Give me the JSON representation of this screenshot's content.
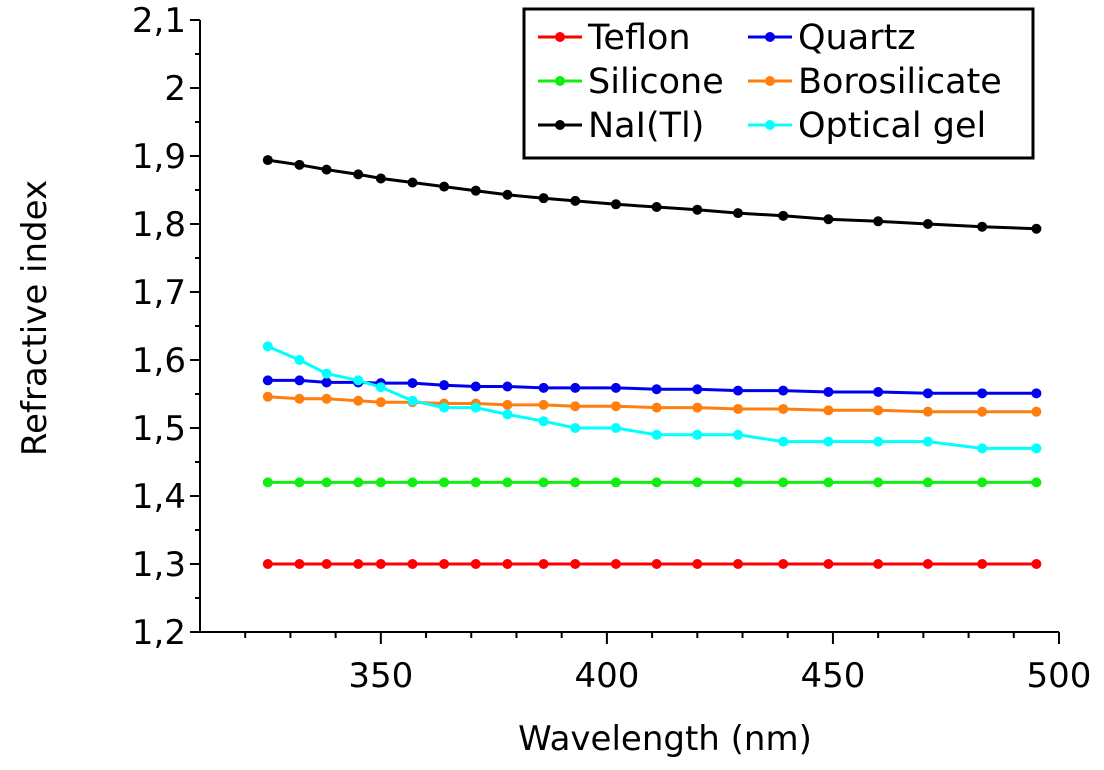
{
  "chart_data": {
    "type": "line",
    "title": "",
    "xlabel": "Wavelength (nm)",
    "ylabel": "Refractive index",
    "xlim": [
      310,
      500
    ],
    "ylim": [
      1.2,
      2.1
    ],
    "x_ticks": [
      350,
      400,
      450,
      500
    ],
    "x_tick_labels": [
      "350",
      "400",
      "450",
      "500"
    ],
    "y_ticks": [
      1.2,
      1.3,
      1.4,
      1.5,
      1.6,
      1.7,
      1.8,
      1.9,
      2.0,
      2.1
    ],
    "y_tick_labels": [
      "1,2",
      "1,3",
      "1,4",
      "1,5",
      "1,6",
      "1,7",
      "1,8",
      "1,9",
      "2",
      "2,1"
    ],
    "grid": false,
    "legend_position": "top-right",
    "x": [
      325,
      332,
      338,
      345,
      350,
      357,
      364,
      371,
      378,
      386,
      393,
      402,
      411,
      420,
      429,
      439,
      449,
      460,
      471,
      483,
      495
    ],
    "series": [
      {
        "name": "Teflon",
        "color": "#ff0000",
        "values": [
          1.3,
          1.3,
          1.3,
          1.3,
          1.3,
          1.3,
          1.3,
          1.3,
          1.3,
          1.3,
          1.3,
          1.3,
          1.3,
          1.3,
          1.3,
          1.3,
          1.3,
          1.3,
          1.3,
          1.3,
          1.3
        ]
      },
      {
        "name": "Quartz",
        "color": "#0000ee",
        "values": [
          1.57,
          1.57,
          1.567,
          1.567,
          1.566,
          1.566,
          1.563,
          1.561,
          1.561,
          1.559,
          1.559,
          1.559,
          1.557,
          1.557,
          1.555,
          1.555,
          1.553,
          1.553,
          1.551,
          1.551,
          1.551
        ]
      },
      {
        "name": "Silicone",
        "color": "#11ee11",
        "values": [
          1.42,
          1.42,
          1.42,
          1.42,
          1.42,
          1.42,
          1.42,
          1.42,
          1.42,
          1.42,
          1.42,
          1.42,
          1.42,
          1.42,
          1.42,
          1.42,
          1.42,
          1.42,
          1.42,
          1.42,
          1.42
        ]
      },
      {
        "name": "Borosilicate",
        "color": "#ff7f0e",
        "values": [
          1.546,
          1.543,
          1.543,
          1.54,
          1.538,
          1.538,
          1.536,
          1.536,
          1.534,
          1.534,
          1.532,
          1.532,
          1.53,
          1.53,
          1.528,
          1.528,
          1.526,
          1.526,
          1.524,
          1.524,
          1.524
        ]
      },
      {
        "name": "NaI(Tl)",
        "color": "#000000",
        "values": [
          1.894,
          1.887,
          1.88,
          1.873,
          1.867,
          1.861,
          1.855,
          1.849,
          1.843,
          1.838,
          1.834,
          1.829,
          1.825,
          1.821,
          1.816,
          1.812,
          1.807,
          1.804,
          1.8,
          1.796,
          1.793
        ]
      },
      {
        "name": "Optical gel",
        "color": "#00ffff",
        "values": [
          1.62,
          1.6,
          1.58,
          1.57,
          1.56,
          1.54,
          1.53,
          1.53,
          1.52,
          1.51,
          1.5,
          1.5,
          1.49,
          1.49,
          1.49,
          1.48,
          1.48,
          1.48,
          1.48,
          1.47,
          1.47
        ]
      }
    ]
  }
}
